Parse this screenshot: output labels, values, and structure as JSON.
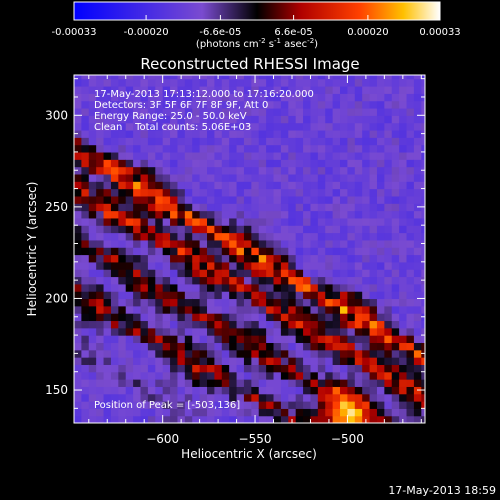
{
  "colorbar": {
    "ticks": [
      "-0.00033",
      "-0.00020",
      "-6.6e-05",
      "6.6e-05",
      "0.00020",
      "0.00033"
    ],
    "unit_parts": [
      "(photons cm",
      "-2",
      " s",
      "-1",
      " asec",
      "-2",
      ")"
    ]
  },
  "chart_data": {
    "type": "heatmap",
    "title": "Reconstructed RHESSI Image",
    "xlabel": "Heliocentric X (arcsec)",
    "ylabel": "Heliocentric Y (arcsec)",
    "xlim": [
      -648,
      -458
    ],
    "ylim": [
      132,
      322
    ],
    "xticks": [
      -600,
      -550,
      -500
    ],
    "xtick_labels": [
      "−600",
      "−550",
      "−500"
    ],
    "yticks": [
      150,
      200,
      250,
      300
    ],
    "ytick_labels": [
      "150",
      "200",
      "250",
      "300"
    ],
    "colorbar_range": [
      -0.00033,
      0.00033
    ],
    "grid": false,
    "annotations": [
      "17-May-2013 17:13:12.000 to 17:16:20.000",
      "Detectors: 3F 5F 6F 7F 8F 9F, Att 0",
      "Energy Range: 25.0 - 50.0 keV",
      "Clean    Total counts: 5.06E+03",
      "Position of Peak = [-503,136]"
    ],
    "peak": {
      "x": -503,
      "y": 136
    },
    "peak_value": 0.00033,
    "bands": [
      {
        "intercept": 42,
        "amplitude": 5e-05
      },
      {
        "intercept": 72,
        "amplitude": 0.00016
      },
      {
        "intercept": 100,
        "amplitude": 0.00018
      },
      {
        "intercept": 128,
        "amplitude": 0.0002
      },
      {
        "intercept": 150,
        "amplitude": 0.00026
      }
    ],
    "band_slope": 0.6,
    "background": -0.00013
  },
  "timestamp": "17-May-2013 18:59"
}
